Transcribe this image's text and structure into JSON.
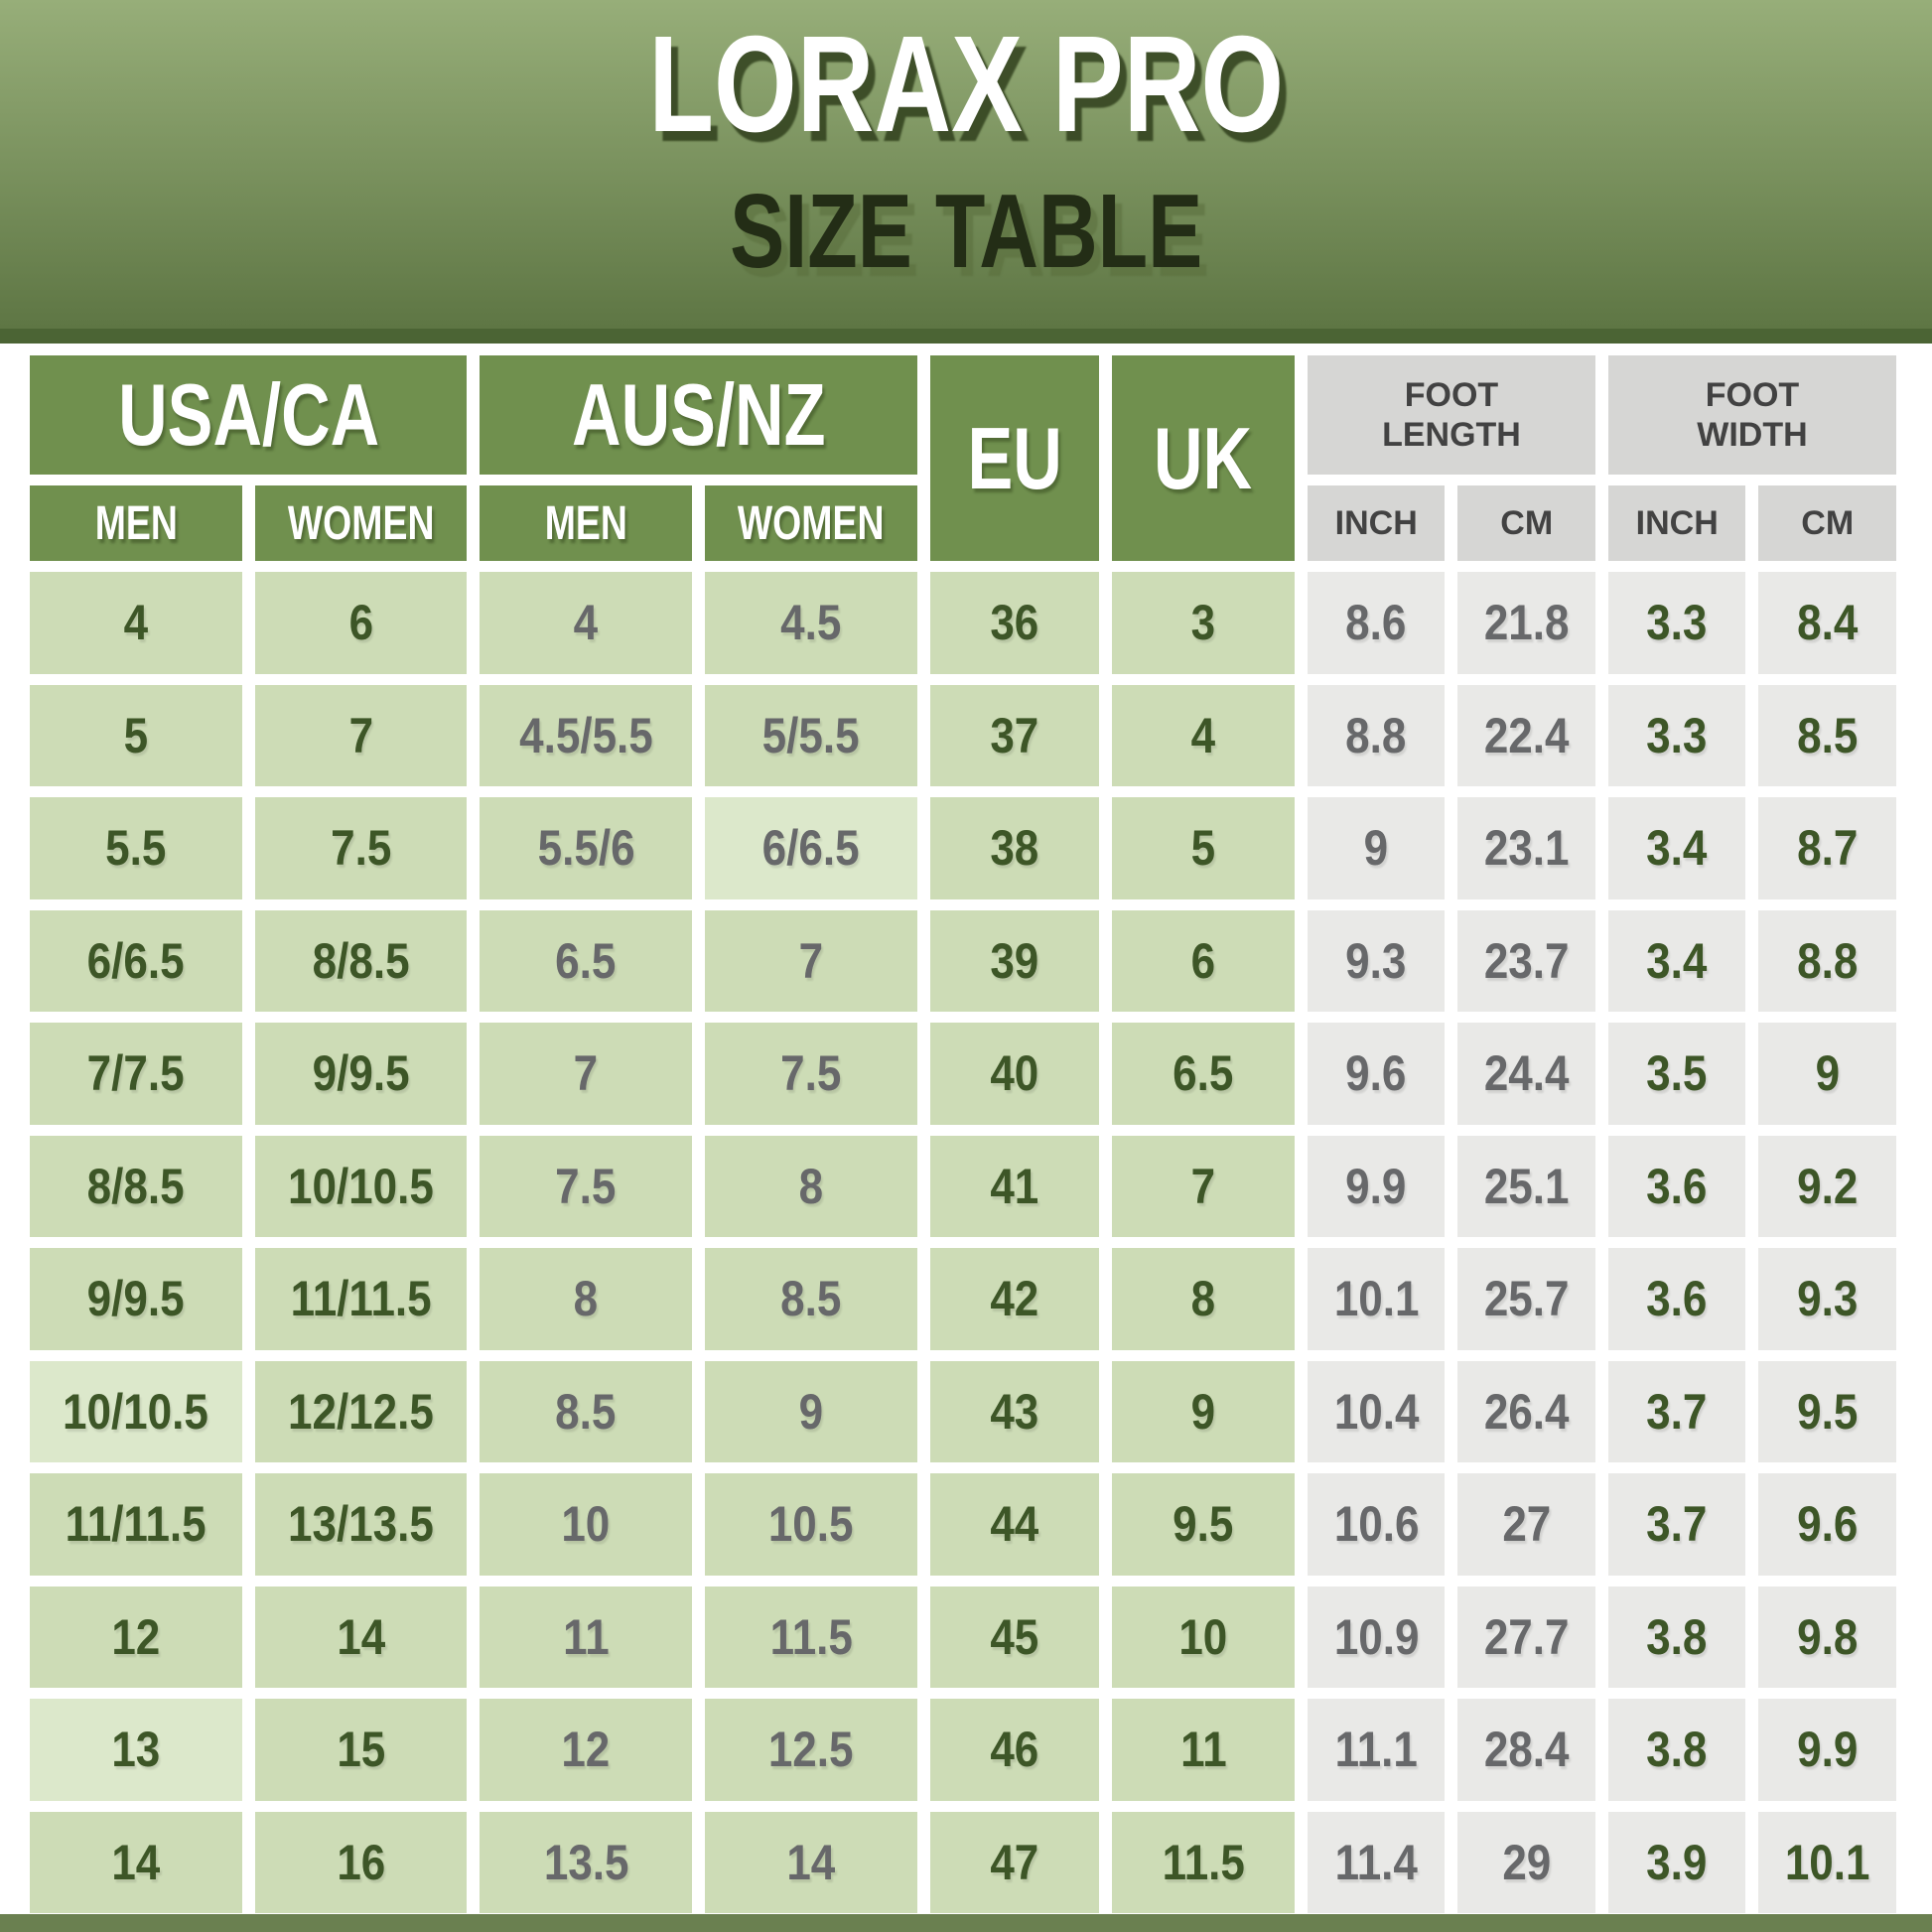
{
  "title": "LORAX PRO",
  "subtitle": "SIZE TABLE",
  "header": {
    "usa_ca": "USA/CA",
    "aus_nz": "AUS/NZ",
    "men": "MEN",
    "women": "WOMEN",
    "eu": "EU",
    "uk": "UK",
    "foot_length": "FOOT LENGTH",
    "foot_width": "FOOT WIDTH",
    "inch": "INCH",
    "cm": "CM"
  },
  "chart_data": {
    "type": "table",
    "title": "LORAX PRO SIZE TABLE",
    "columns": [
      "USA/CA MEN",
      "USA/CA WOMEN",
      "AUS/NZ MEN",
      "AUS/NZ WOMEN",
      "EU",
      "UK",
      "FOOT LENGTH INCH",
      "FOOT LENGTH CM",
      "FOOT WIDTH INCH",
      "FOOT WIDTH CM"
    ],
    "rows": [
      [
        "4",
        "6",
        "4",
        "4.5",
        "36",
        "3",
        "8.6",
        "21.8",
        "3.3",
        "8.4"
      ],
      [
        "5",
        "7",
        "4.5/5.5",
        "5/5.5",
        "37",
        "4",
        "8.8",
        "22.4",
        "3.3",
        "8.5"
      ],
      [
        "5.5",
        "7.5",
        "5.5/6",
        "6/6.5",
        "38",
        "5",
        "9",
        "23.1",
        "3.4",
        "8.7"
      ],
      [
        "6/6.5",
        "8/8.5",
        "6.5",
        "7",
        "39",
        "6",
        "9.3",
        "23.7",
        "3.4",
        "8.8"
      ],
      [
        "7/7.5",
        "9/9.5",
        "7",
        "7.5",
        "40",
        "6.5",
        "9.6",
        "24.4",
        "3.5",
        "9"
      ],
      [
        "8/8.5",
        "10/10.5",
        "7.5",
        "8",
        "41",
        "7",
        "9.9",
        "25.1",
        "3.6",
        "9.2"
      ],
      [
        "9/9.5",
        "11/11.5",
        "8",
        "8.5",
        "42",
        "8",
        "10.1",
        "25.7",
        "3.6",
        "9.3"
      ],
      [
        "10/10.5",
        "12/12.5",
        "8.5",
        "9",
        "43",
        "9",
        "10.4",
        "26.4",
        "3.7",
        "9.5"
      ],
      [
        "11/11.5",
        "13/13.5",
        "10",
        "10.5",
        "44",
        "9.5",
        "10.6",
        "27",
        "3.7",
        "9.6"
      ],
      [
        "12",
        "14",
        "11",
        "11.5",
        "45",
        "10",
        "10.9",
        "27.7",
        "3.8",
        "9.8"
      ],
      [
        "13",
        "15",
        "12",
        "12.5",
        "46",
        "11",
        "11.1",
        "28.4",
        "3.8",
        "9.9"
      ],
      [
        "14",
        "16",
        "13.5",
        "14",
        "47",
        "11.5",
        "11.4",
        "29",
        "3.9",
        "10.1"
      ]
    ]
  },
  "colors": {
    "hero_gradient_top": "#97ae79",
    "hero_gradient_bottom": "#5e7644",
    "hero_strip": "#4b6434",
    "header_green": "#70904e",
    "cell_green": "#cddcb6",
    "cell_green_light": "#dce8cb",
    "cell_gray": "#e9e9e7",
    "header_gray": "#d6d6d4",
    "text_green": "#3d5627",
    "text_gray": "#67686a",
    "header_text_gray": "#424242",
    "subtitle_text": "#232d16",
    "bottom_bar": "#6a8050"
  }
}
